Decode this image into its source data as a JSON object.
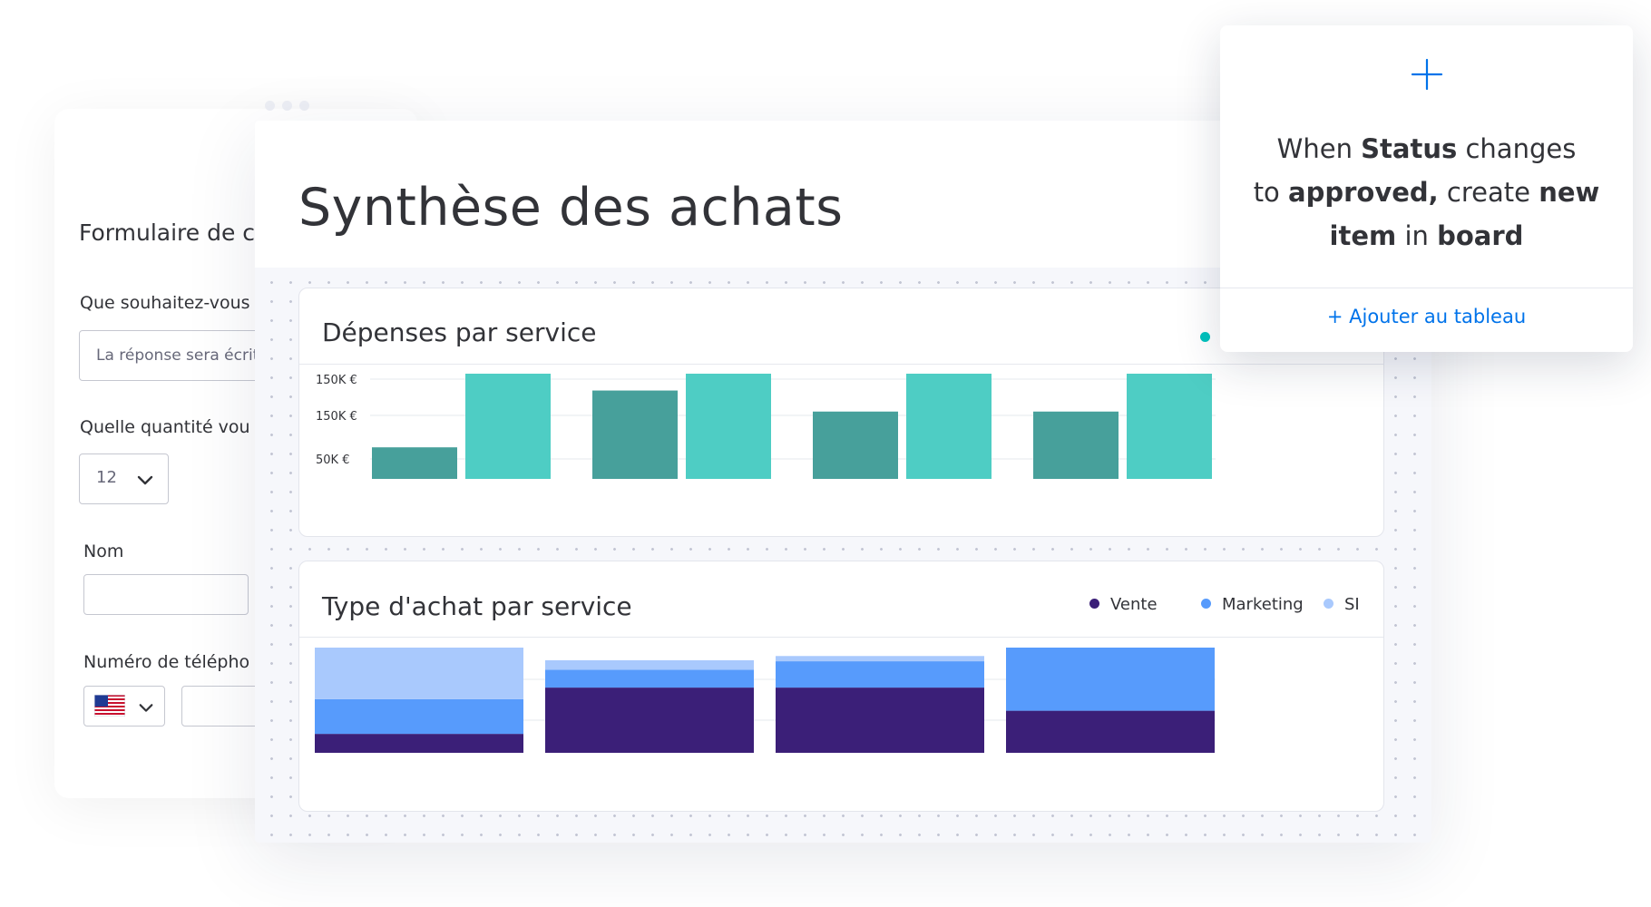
{
  "form": {
    "title": "Formulaire de co",
    "q1_label": "Que souhaitez-vous",
    "q1_placeholder": "La réponse sera écrite",
    "q2_label": "Quelle quantité vou",
    "q2_value": "12",
    "q3_label": "Nom",
    "q4_label": "Numéro de télépho",
    "country_icon": "us-flag-icon"
  },
  "dashboard": {
    "title": "Synthèse des achats",
    "chart1_title": "Dépenses par service",
    "chart2_title": "Type d'achat par service",
    "legend": {
      "vente": "Vente",
      "marketing": "Marketing",
      "si": "SI"
    }
  },
  "automation": {
    "line1_pre": "When ",
    "line1_bold": "Status",
    "line1_post": " changes",
    "line2_pre": "to ",
    "line2_bold1": "approved,",
    "line2_mid": " create ",
    "line2_bold2": "new",
    "line3_bold1": "item",
    "line3_mid": " in ",
    "line3_bold2": "board",
    "add_link": "+ Ajouter au tableau"
  },
  "colors": {
    "teal_dark": "#47a09b",
    "teal_light": "#4ecdc4",
    "vente": "#3b1f78",
    "marketing": "#579bfc",
    "si": "#a9c9fd",
    "accent_blue": "#0073ea"
  },
  "chart_data": [
    {
      "type": "bar",
      "title": "Dépenses par service",
      "y_tick_labels": [
        "150K €",
        "150K €",
        "50K €"
      ],
      "groups": 4,
      "series": [
        {
          "values": [
            30,
            84,
            64,
            64
          ]
        },
        {
          "values": [
            100,
            100,
            100,
            100
          ]
        }
      ],
      "value_scale": "relative, 0-100 (no numeric axis beyond printed tick labels)"
    },
    {
      "type": "bar",
      "stacked": true,
      "title": "Type d'achat par service",
      "legend_placement": "top-right",
      "groups": 4,
      "series": [
        {
          "name": "Vente",
          "values": [
            18,
            62,
            62,
            40
          ]
        },
        {
          "name": "Marketing",
          "values": [
            33,
            17,
            25,
            60
          ]
        },
        {
          "name": "SI",
          "values": [
            49,
            9,
            5,
            0
          ]
        }
      ]
    }
  ]
}
